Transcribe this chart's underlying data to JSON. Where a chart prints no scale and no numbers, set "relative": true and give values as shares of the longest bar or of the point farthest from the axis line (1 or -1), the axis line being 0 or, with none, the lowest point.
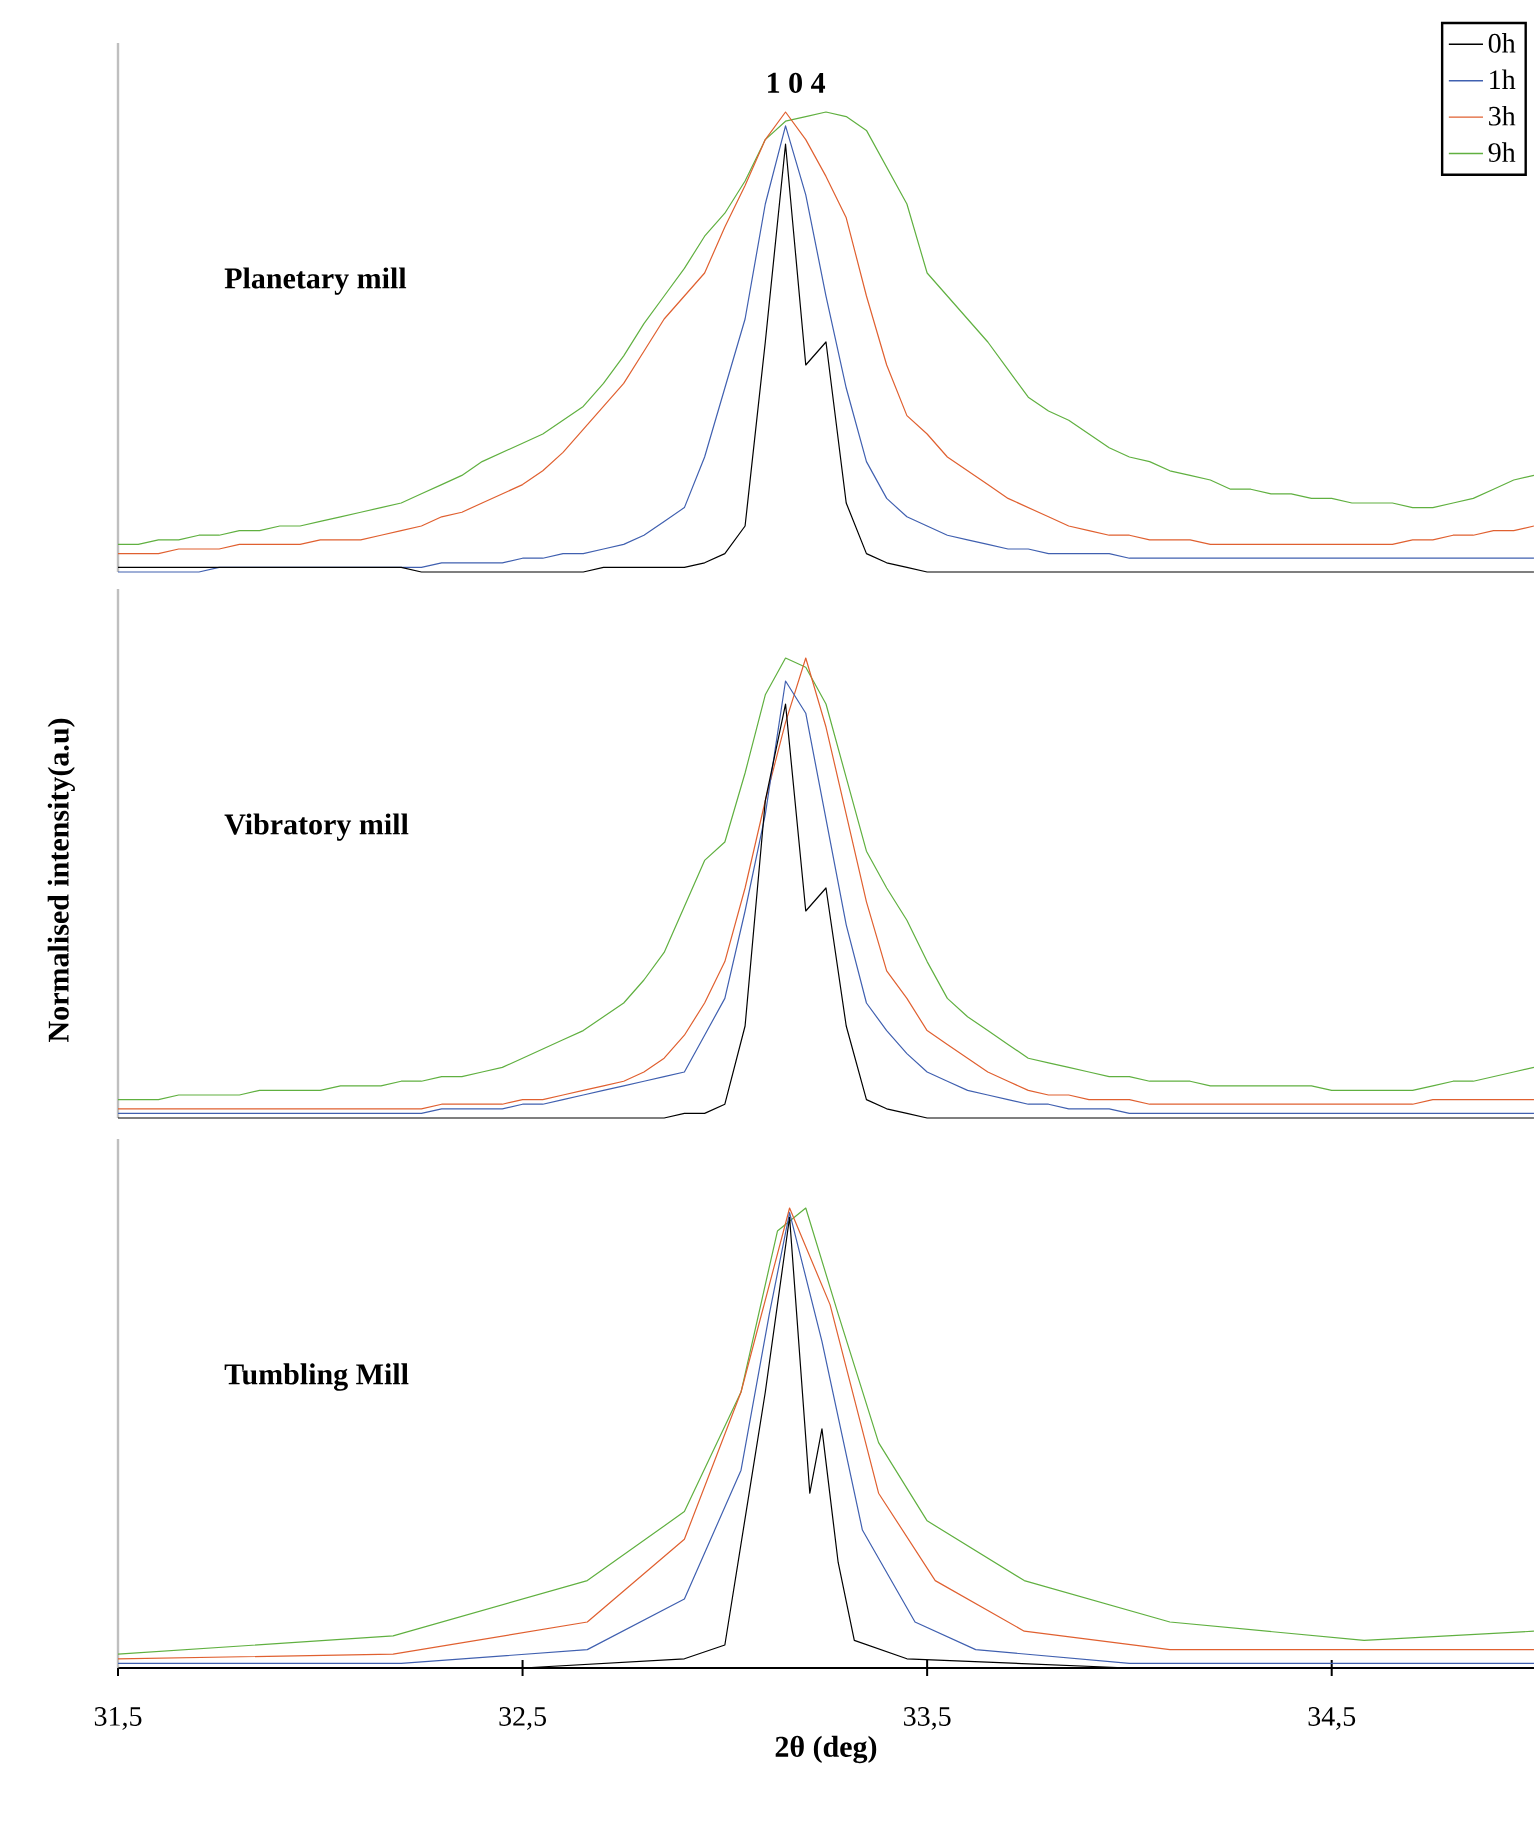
{
  "chart_data": [
    {
      "type": "line",
      "relative": true,
      "tick_labels": false,
      "legend": "top right",
      "categories": [
        null,
        null,
        null,
        null,
        null,
        null,
        null,
        null,
        null,
        null,
        null,
        null,
        null,
        null,
        null,
        null,
        null,
        null,
        null,
        null,
        null,
        null,
        null,
        null,
        null,
        null,
        null,
        null,
        null,
        null,
        null,
        null,
        null,
        null,
        null,
        null,
        null,
        null,
        null,
        null,
        null,
        null,
        null,
        null,
        null,
        null,
        null,
        null,
        null,
        null,
        null,
        null,
        null,
        null,
        null,
        null,
        null,
        null,
        null,
        null,
        null,
        null,
        null,
        null,
        null,
        null,
        null,
        null,
        null,
        null,
        null
      ],
      "annotations": [
        {
          "text": "1 0 4",
          "y": 1.0
        },
        "Planetary mill"
      ],
      "series": [
        {
          "name": "0h",
          "color": "#000000",
          "values": [
            0.01,
            0.01,
            0.01,
            0.01,
            0.01,
            0.01,
            0.01,
            0.01,
            0.01,
            0.01,
            0.01,
            0.01,
            0.01,
            0.01,
            0.01,
            0.0,
            0.0,
            0.0,
            0.0,
            0.0,
            0.0,
            0.0,
            0.0,
            0.0,
            0.01,
            0.01,
            0.01,
            0.01,
            0.01,
            0.02,
            0.04,
            0.1,
            0.5,
            0.93,
            0.45,
            0.5,
            0.15,
            0.04,
            0.02,
            0.01,
            0.0,
            0.0,
            0.0,
            0.0,
            0.0,
            0.0,
            0.0,
            0.0,
            0.0,
            0.0,
            0.0,
            0.0,
            0.0,
            0.0,
            0.0,
            0.0,
            0.0,
            0.0,
            0.0,
            0.0,
            0.0,
            0.0,
            0.0,
            0.0,
            0.0,
            0.0,
            0.0,
            0.0,
            0.0,
            0.0,
            0.0
          ]
        },
        {
          "name": "1h",
          "color": "#4060b0",
          "values": [
            0.0,
            0.0,
            0.0,
            0.0,
            0.0,
            0.01,
            0.01,
            0.01,
            0.01,
            0.01,
            0.01,
            0.01,
            0.01,
            0.01,
            0.01,
            0.01,
            0.02,
            0.02,
            0.02,
            0.02,
            0.03,
            0.03,
            0.04,
            0.04,
            0.05,
            0.06,
            0.08,
            0.11,
            0.14,
            0.25,
            0.4,
            0.55,
            0.8,
            0.97,
            0.82,
            0.6,
            0.4,
            0.24,
            0.16,
            0.12,
            0.1,
            0.08,
            0.07,
            0.06,
            0.05,
            0.05,
            0.04,
            0.04,
            0.04,
            0.04,
            0.03,
            0.03,
            0.03,
            0.03,
            0.03,
            0.03,
            0.03,
            0.03,
            0.03,
            0.03,
            0.03,
            0.03,
            0.03,
            0.03,
            0.03,
            0.03,
            0.03,
            0.03,
            0.03,
            0.03,
            0.03
          ]
        },
        {
          "name": "3h",
          "color": "#e06030",
          "values": [
            0.04,
            0.04,
            0.04,
            0.05,
            0.05,
            0.05,
            0.06,
            0.06,
            0.06,
            0.06,
            0.07,
            0.07,
            0.07,
            0.08,
            0.09,
            0.1,
            0.12,
            0.13,
            0.15,
            0.17,
            0.19,
            0.22,
            0.26,
            0.31,
            0.36,
            0.41,
            0.48,
            0.55,
            0.6,
            0.65,
            0.75,
            0.84,
            0.94,
            1.0,
            0.94,
            0.86,
            0.77,
            0.6,
            0.45,
            0.34,
            0.3,
            0.25,
            0.22,
            0.19,
            0.16,
            0.14,
            0.12,
            0.1,
            0.09,
            0.08,
            0.08,
            0.07,
            0.07,
            0.07,
            0.06,
            0.06,
            0.06,
            0.06,
            0.06,
            0.06,
            0.06,
            0.06,
            0.06,
            0.06,
            0.07,
            0.07,
            0.08,
            0.08,
            0.09,
            0.09,
            0.1
          ]
        },
        {
          "name": "9h",
          "color": "#60b040",
          "values": [
            0.06,
            0.06,
            0.07,
            0.07,
            0.08,
            0.08,
            0.09,
            0.09,
            0.1,
            0.1,
            0.11,
            0.12,
            0.13,
            0.14,
            0.15,
            0.17,
            0.19,
            0.21,
            0.24,
            0.26,
            0.28,
            0.3,
            0.33,
            0.36,
            0.41,
            0.47,
            0.54,
            0.6,
            0.66,
            0.73,
            0.78,
            0.85,
            0.94,
            0.98,
            0.99,
            1.0,
            0.99,
            0.96,
            0.88,
            0.8,
            0.65,
            0.6,
            0.55,
            0.5,
            0.44,
            0.38,
            0.35,
            0.33,
            0.3,
            0.27,
            0.25,
            0.24,
            0.22,
            0.21,
            0.2,
            0.18,
            0.18,
            0.17,
            0.17,
            0.16,
            0.16,
            0.15,
            0.15,
            0.15,
            0.14,
            0.14,
            0.15,
            0.16,
            0.18,
            0.2,
            0.21
          ]
        }
      ]
    },
    {
      "type": "line",
      "relative": true,
      "tick_labels": false,
      "ylabel": "Normalised intensity(a.u)",
      "categories": [
        null,
        null,
        null,
        null,
        null,
        null,
        null,
        null,
        null,
        null,
        null,
        null,
        null,
        null,
        null,
        null,
        null,
        null,
        null,
        null,
        null,
        null,
        null,
        null,
        null,
        null,
        null,
        null,
        null,
        null,
        null,
        null,
        null,
        null,
        null,
        null,
        null,
        null,
        null,
        null,
        null,
        null,
        null,
        null,
        null,
        null,
        null,
        null,
        null,
        null,
        null,
        null,
        null,
        null,
        null,
        null,
        null,
        null,
        null,
        null,
        null,
        null,
        null,
        null,
        null,
        null,
        null,
        null,
        null,
        null,
        null
      ],
      "annotations": [
        "Vibratory mill"
      ],
      "series": [
        {
          "color": "#000000",
          "values": [
            0.0,
            0.0,
            0.0,
            0.0,
            0.0,
            0.0,
            0.0,
            0.0,
            0.0,
            0.0,
            0.0,
            0.0,
            0.0,
            0.0,
            0.0,
            0.0,
            0.0,
            0.0,
            0.0,
            0.0,
            0.0,
            0.0,
            0.0,
            0.0,
            0.0,
            0.0,
            0.0,
            0.0,
            0.01,
            0.01,
            0.03,
            0.2,
            0.69,
            0.9,
            0.45,
            0.5,
            0.2,
            0.04,
            0.02,
            0.01,
            0.0,
            0.0,
            0.0,
            0.0,
            0.0,
            0.0,
            0.0,
            0.0,
            0.0,
            0.0,
            0.0,
            0.0,
            0.0,
            0.0,
            0.0,
            0.0,
            0.0,
            0.0,
            0.0,
            0.0,
            0.0,
            0.0,
            0.0,
            0.0,
            0.0,
            0.0,
            0.0,
            0.0,
            0.0,
            0.0,
            0.0
          ]
        },
        {
          "color": "#4060b0",
          "values": [
            0.01,
            0.01,
            0.01,
            0.01,
            0.01,
            0.01,
            0.01,
            0.01,
            0.01,
            0.01,
            0.01,
            0.01,
            0.01,
            0.01,
            0.01,
            0.01,
            0.02,
            0.02,
            0.02,
            0.02,
            0.03,
            0.03,
            0.04,
            0.05,
            0.06,
            0.07,
            0.08,
            0.09,
            0.1,
            0.18,
            0.26,
            0.45,
            0.66,
            0.95,
            0.88,
            0.65,
            0.42,
            0.25,
            0.19,
            0.14,
            0.1,
            0.08,
            0.06,
            0.05,
            0.04,
            0.03,
            0.03,
            0.02,
            0.02,
            0.02,
            0.01,
            0.01,
            0.01,
            0.01,
            0.01,
            0.01,
            0.01,
            0.01,
            0.01,
            0.01,
            0.01,
            0.01,
            0.01,
            0.01,
            0.01,
            0.01,
            0.01,
            0.01,
            0.01,
            0.01,
            0.01
          ]
        },
        {
          "color": "#e06030",
          "values": [
            0.02,
            0.02,
            0.02,
            0.02,
            0.02,
            0.02,
            0.02,
            0.02,
            0.02,
            0.02,
            0.02,
            0.02,
            0.02,
            0.02,
            0.02,
            0.02,
            0.03,
            0.03,
            0.03,
            0.03,
            0.04,
            0.04,
            0.05,
            0.06,
            0.07,
            0.08,
            0.1,
            0.13,
            0.18,
            0.25,
            0.34,
            0.5,
            0.69,
            0.86,
            1.0,
            0.85,
            0.66,
            0.47,
            0.32,
            0.26,
            0.19,
            0.16,
            0.13,
            0.1,
            0.08,
            0.06,
            0.05,
            0.05,
            0.04,
            0.04,
            0.04,
            0.03,
            0.03,
            0.03,
            0.03,
            0.03,
            0.03,
            0.03,
            0.03,
            0.03,
            0.03,
            0.03,
            0.03,
            0.03,
            0.03,
            0.04,
            0.04,
            0.04,
            0.04,
            0.04,
            0.04
          ]
        },
        {
          "color": "#60b040",
          "values": [
            0.04,
            0.04,
            0.04,
            0.05,
            0.05,
            0.05,
            0.05,
            0.06,
            0.06,
            0.06,
            0.06,
            0.07,
            0.07,
            0.07,
            0.08,
            0.08,
            0.09,
            0.09,
            0.1,
            0.11,
            0.13,
            0.15,
            0.17,
            0.19,
            0.22,
            0.25,
            0.3,
            0.36,
            0.46,
            0.56,
            0.6,
            0.75,
            0.92,
            1.0,
            0.98,
            0.9,
            0.74,
            0.58,
            0.5,
            0.43,
            0.34,
            0.26,
            0.22,
            0.19,
            0.16,
            0.13,
            0.12,
            0.11,
            0.1,
            0.09,
            0.09,
            0.08,
            0.08,
            0.08,
            0.07,
            0.07,
            0.07,
            0.07,
            0.07,
            0.07,
            0.06,
            0.06,
            0.06,
            0.06,
            0.06,
            0.07,
            0.08,
            0.08,
            0.09,
            0.1,
            0.11
          ]
        }
      ]
    },
    {
      "type": "line",
      "relative": true,
      "xlim": [
        31.5,
        35.0
      ],
      "tick_labels": "x",
      "xlabel": "2θ (deg)",
      "xticks": [
        {
          "value": 31.5,
          "label": "31,5"
        },
        {
          "value": 32.5,
          "label": "32,5"
        },
        {
          "value": 33.5,
          "label": "33,5"
        },
        {
          "value": 34.5,
          "label": "34,5"
        }
      ],
      "annotations": [
        "Tumbling Mill"
      ],
      "series": [
        {
          "color": "#000000",
          "x": [
            31.5,
            32.5,
            32.9,
            33.0,
            33.1,
            33.16,
            33.21,
            33.24,
            33.28,
            33.32,
            33.45,
            34.0,
            35.0
          ],
          "values": [
            0.0,
            0.0,
            0.02,
            0.05,
            0.6,
            0.98,
            0.38,
            0.52,
            0.23,
            0.06,
            0.02,
            0.0,
            0.0
          ]
        },
        {
          "color": "#4060b0",
          "x": [
            31.5,
            32.2,
            32.66,
            32.9,
            33.04,
            33.11,
            33.16,
            33.24,
            33.34,
            33.47,
            33.62,
            34.0,
            35.0
          ],
          "values": [
            0.01,
            0.01,
            0.04,
            0.15,
            0.43,
            0.77,
            0.99,
            0.71,
            0.3,
            0.1,
            0.04,
            0.01,
            0.01
          ]
        },
        {
          "color": "#e06030",
          "x": [
            31.5,
            32.18,
            32.66,
            32.9,
            33.04,
            33.16,
            33.26,
            33.38,
            33.52,
            33.74,
            34.1,
            35.0
          ],
          "values": [
            0.02,
            0.03,
            0.1,
            0.28,
            0.6,
            1.0,
            0.79,
            0.38,
            0.19,
            0.08,
            0.04,
            0.04
          ]
        },
        {
          "color": "#60b040",
          "x": [
            31.5,
            32.18,
            32.66,
            32.9,
            33.04,
            33.13,
            33.2,
            33.28,
            33.38,
            33.5,
            33.74,
            34.1,
            34.58,
            35.0
          ],
          "values": [
            0.03,
            0.07,
            0.19,
            0.34,
            0.6,
            0.95,
            1.0,
            0.77,
            0.49,
            0.32,
            0.19,
            0.1,
            0.06,
            0.08
          ]
        }
      ]
    }
  ]
}
